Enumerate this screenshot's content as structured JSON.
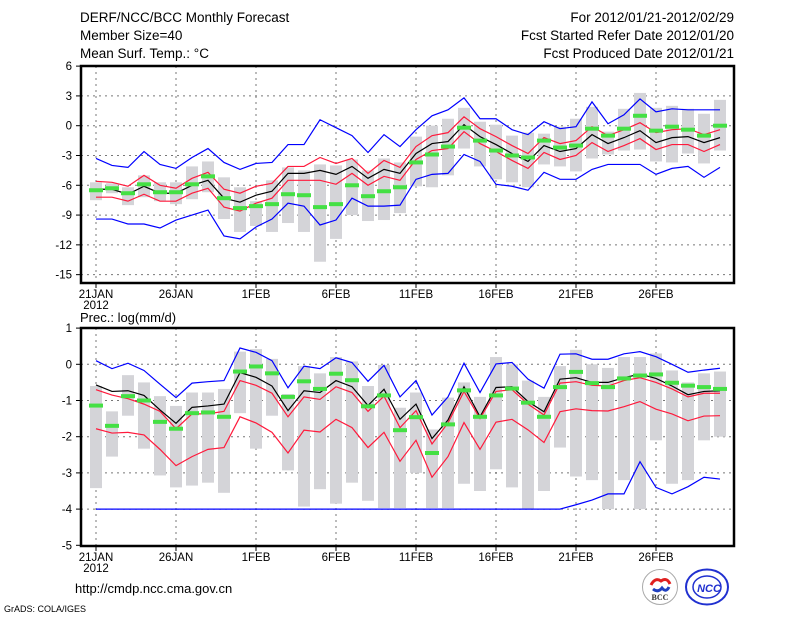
{
  "header": {
    "title": "DERF/NCC/BCC Monthly Forecast",
    "member_size": "Member Size=40",
    "variable_top": "Mean Surf. Temp.: °C",
    "period": "For 2012/01/21-2012/02/29",
    "started": "Fcst Started Refer Date 2012/01/20",
    "produced": "Fcst Produced Date 2012/01/21"
  },
  "footer": {
    "url": "http://cmdp.ncc.cma.gov.cn",
    "credit": "GrADS: COLA/IGES",
    "logos": [
      "BCC",
      "NCC"
    ]
  },
  "colors": {
    "mean": "#000000",
    "spread": "#ff1a3c",
    "extreme": "#0000ff",
    "marker": "#44e044",
    "box": "#d4d4d8"
  },
  "chart_data": [
    {
      "type": "line",
      "title": "Mean Surf. Temp.: °C",
      "x_ticks": [
        "21JAN",
        "26JAN",
        "1FEB",
        "6FEB",
        "11FEB",
        "16FEB",
        "21FEB",
        "26FEB"
      ],
      "x_tick_days": [
        0,
        5,
        10,
        15,
        20,
        25,
        30,
        35
      ],
      "x_sublabel": "2012",
      "days": 40,
      "ylim": [
        -15.8,
        6
      ],
      "y_ticks": [
        6,
        3,
        0,
        -3,
        -6,
        -9,
        -12,
        -15
      ],
      "grid": true,
      "series": [
        {
          "name": "max",
          "role": "extreme",
          "values": [
            -3.3,
            -4.0,
            -4.2,
            -2.6,
            -3.9,
            -4.3,
            -3.2,
            -2.3,
            -3.7,
            -4.4,
            -3.8,
            -3.7,
            -1.9,
            -1.9,
            0.6,
            -0.2,
            -1.0,
            -2.7,
            -0.9,
            -2.1,
            -0.4,
            1.0,
            1.6,
            2.8,
            0.7,
            0.7,
            -0.4,
            -0.9,
            0.4,
            -0.3,
            -0.1,
            2.4,
            0.2,
            1.1,
            2.7,
            1.4,
            1.7,
            1.6,
            1.6,
            1.6
          ]
        },
        {
          "name": "upper",
          "role": "spread",
          "values": [
            -5.6,
            -5.7,
            -6.1,
            -5.0,
            -6.0,
            -6.3,
            -5.3,
            -4.7,
            -6.4,
            -6.8,
            -6.1,
            -5.8,
            -4.1,
            -4.1,
            -3.2,
            -3.8,
            -3.3,
            -4.8,
            -3.5,
            -4.2,
            -2.1,
            -1.0,
            -0.7,
            0.9,
            -0.3,
            -1.1,
            -2.0,
            -2.8,
            -1.2,
            -1.8,
            -1.5,
            -0.1,
            -1.0,
            -0.4,
            0.3,
            -0.7,
            -0.4,
            -0.3,
            -0.9,
            -0.4
          ]
        },
        {
          "name": "mean",
          "role": "mean",
          "values": [
            -6.4,
            -6.4,
            -6.9,
            -6.1,
            -6.8,
            -6.8,
            -6.0,
            -5.5,
            -7.3,
            -7.7,
            -7.0,
            -6.6,
            -4.8,
            -4.8,
            -4.5,
            -4.9,
            -4.1,
            -5.3,
            -4.4,
            -4.8,
            -2.8,
            -1.8,
            -1.6,
            0.1,
            -1.1,
            -1.9,
            -2.8,
            -3.6,
            -2.0,
            -2.6,
            -2.3,
            -0.9,
            -1.8,
            -1.2,
            -0.5,
            -1.7,
            -1.2,
            -1.1,
            -1.7,
            -1.2
          ]
        },
        {
          "name": "lower",
          "role": "spread",
          "values": [
            -7.2,
            -7.2,
            -7.6,
            -6.9,
            -7.6,
            -7.6,
            -6.8,
            -6.3,
            -8.2,
            -8.6,
            -7.8,
            -7.3,
            -5.5,
            -5.5,
            -5.5,
            -5.9,
            -4.8,
            -6.0,
            -5.1,
            -5.5,
            -3.4,
            -2.5,
            -2.3,
            -0.6,
            -1.8,
            -2.6,
            -3.5,
            -4.3,
            -2.7,
            -3.4,
            -3.0,
            -1.7,
            -2.6,
            -2.0,
            -1.3,
            -2.4,
            -1.9,
            -1.9,
            -2.6,
            -1.9
          ]
        },
        {
          "name": "min",
          "role": "extreme",
          "values": [
            -9.4,
            -9.4,
            -9.9,
            -9.9,
            -10.3,
            -9.5,
            -9.0,
            -8.5,
            -11.1,
            -11.4,
            -10.2,
            -9.4,
            -7.8,
            -8.1,
            -10.0,
            -9.5,
            -7.3,
            -8.1,
            -8.1,
            -8.0,
            -5.4,
            -4.9,
            -4.8,
            -2.9,
            -3.6,
            -5.9,
            -6.1,
            -6.5,
            -4.7,
            -5.4,
            -5.4,
            -4.4,
            -3.9,
            -3.9,
            -3.9,
            -4.9,
            -4.3,
            -4.1,
            -5.2,
            -4.2
          ]
        }
      ],
      "markers": [
        -6.5,
        -6.3,
        -6.8,
        -5.9,
        -6.7,
        -6.7,
        -5.9,
        -5.1,
        -7.3,
        -8.3,
        -8.1,
        -7.9,
        -6.9,
        -7.0,
        -8.2,
        -7.9,
        -6.0,
        -7.1,
        -6.6,
        -6.2,
        -3.7,
        -2.9,
        -2.1,
        -0.2,
        -1.5,
        -2.5,
        -3.0,
        -3.2,
        -1.5,
        -2.2,
        -2.0,
        -0.3,
        -1.0,
        -0.3,
        1.0,
        -0.5,
        -0.1,
        -0.4,
        -1.0,
        0.0
      ],
      "box_ranges": [
        [
          -7.5,
          -5.7
        ],
        [
          -6.8,
          -5.8
        ],
        [
          -8.0,
          -6.2
        ],
        [
          -7.2,
          -5.0
        ],
        [
          -7.6,
          -5.7
        ],
        [
          -7.9,
          -5.7
        ],
        [
          -7.4,
          -4.1
        ],
        [
          -6.7,
          -3.6
        ],
        [
          -9.4,
          -5.2
        ],
        [
          -10.7,
          -6.2
        ],
        [
          -10.1,
          -7.6
        ],
        [
          -10.7,
          -5.5
        ],
        [
          -9.8,
          -4.2
        ],
        [
          -10.7,
          -4.5
        ],
        [
          -13.7,
          -3.9
        ],
        [
          -11.4,
          -4.0
        ],
        [
          -9.0,
          -3.4
        ],
        [
          -9.6,
          -4.5
        ],
        [
          -9.5,
          -3.3
        ],
        [
          -8.8,
          -3.7
        ],
        [
          -6.1,
          -1.1
        ],
        [
          -6.2,
          0.0
        ],
        [
          -5.0,
          0.7
        ],
        [
          -2.3,
          1.8
        ],
        [
          -4.1,
          0.4
        ],
        [
          -5.4,
          0.1
        ],
        [
          -5.7,
          -1.0
        ],
        [
          -6.2,
          -0.7
        ],
        [
          -3.9,
          -0.8
        ],
        [
          -4.1,
          -0.1
        ],
        [
          -4.6,
          0.7
        ],
        [
          -3.3,
          1.9
        ],
        [
          -2.9,
          -0.6
        ],
        [
          -2.5,
          1.7
        ],
        [
          -2.4,
          3.3
        ],
        [
          -3.6,
          1.8
        ],
        [
          -3.7,
          2.0
        ],
        [
          -2.8,
          1.7
        ],
        [
          -3.8,
          1.2
        ],
        [
          -2.5,
          2.6
        ]
      ]
    },
    {
      "type": "line",
      "title": "Prec.: log(mm/d)",
      "x_ticks": [
        "21JAN",
        "26JAN",
        "1FEB",
        "6FEB",
        "11FEB",
        "16FEB",
        "21FEB",
        "26FEB"
      ],
      "x_tick_days": [
        0,
        5,
        10,
        15,
        20,
        25,
        30,
        35
      ],
      "x_sublabel": "2012",
      "days": 40,
      "ylim": [
        -5,
        1
      ],
      "y_ticks": [
        1,
        0,
        -1,
        -2,
        -3,
        -4,
        -5
      ],
      "grid": true,
      "series": [
        {
          "name": "max",
          "role": "extreme",
          "values": [
            0.1,
            -0.12,
            0.03,
            -0.17,
            -0.55,
            -0.92,
            -0.52,
            -0.48,
            -0.45,
            0.45,
            0.33,
            0.1,
            -0.65,
            -0.05,
            -0.12,
            0.18,
            0.05,
            -0.47,
            -0.03,
            -0.9,
            -0.45,
            -1.4,
            -0.9,
            0.03,
            -0.78,
            0.01,
            0.05,
            -0.41,
            -0.66,
            0.28,
            0.29,
            0.14,
            0.14,
            0.29,
            0.35,
            0.21,
            0.0,
            -0.22,
            -0.16,
            -0.11
          ]
        },
        {
          "name": "mean",
          "role": "mean",
          "values": [
            -0.57,
            -0.75,
            -0.73,
            -0.86,
            -1.26,
            -1.63,
            -1.19,
            -1.15,
            -1.1,
            -0.23,
            -0.36,
            -0.6,
            -1.28,
            -0.73,
            -0.78,
            -0.45,
            -0.62,
            -1.14,
            -0.69,
            -1.52,
            -1.1,
            -2.05,
            -1.54,
            -0.62,
            -1.45,
            -0.64,
            -0.62,
            -1.03,
            -1.31,
            -0.41,
            -0.37,
            -0.5,
            -0.5,
            -0.37,
            -0.27,
            -0.39,
            -0.6,
            -0.84,
            -0.75,
            -0.73
          ]
        },
        {
          "name": "upper",
          "role": "spread",
          "values": [
            -0.7,
            -0.85,
            -0.95,
            -1.1,
            -1.3,
            -1.78,
            -1.37,
            -1.37,
            -1.3,
            -0.45,
            -0.58,
            -0.8,
            -1.45,
            -0.9,
            -0.97,
            -0.62,
            -0.78,
            -1.3,
            -0.88,
            -1.75,
            -1.28,
            -2.2,
            -1.62,
            -0.75,
            -1.5,
            -0.75,
            -0.7,
            -1.1,
            -1.4,
            -0.52,
            -0.48,
            -0.58,
            -0.6,
            -0.45,
            -0.37,
            -0.5,
            -0.68,
            -0.9,
            -0.8,
            -0.8
          ]
        },
        {
          "name": "lower",
          "role": "spread",
          "values": [
            -1.78,
            -1.9,
            -1.88,
            -1.95,
            -2.35,
            -2.8,
            -2.55,
            -2.35,
            -2.3,
            -1.45,
            -1.62,
            -1.88,
            -2.45,
            -1.82,
            -1.87,
            -1.52,
            -1.75,
            -2.3,
            -1.88,
            -2.68,
            -2.1,
            -3.12,
            -2.55,
            -1.61,
            -2.35,
            -1.6,
            -1.52,
            -1.81,
            -2.16,
            -1.31,
            -1.23,
            -1.28,
            -1.29,
            -1.17,
            -1.03,
            -1.24,
            -1.37,
            -1.56,
            -1.43,
            -1.42
          ]
        },
        {
          "name": "min",
          "role": "extreme",
          "values": [
            -4,
            -4,
            -4,
            -4,
            -4,
            -4,
            -4,
            -4,
            -4,
            -4,
            -4,
            -4,
            -4,
            -4,
            -4,
            -4,
            -4,
            -4,
            -4,
            -4,
            -4,
            -4,
            -4,
            -4,
            -4,
            -4,
            -4,
            -4,
            -4,
            -4,
            -3.88,
            -3.75,
            -3.58,
            -3.58,
            -2.69,
            -3.4,
            -3.58,
            -3.38,
            -3.12,
            -3.17
          ]
        }
      ],
      "markers": [
        -1.14,
        -1.7,
        -0.88,
        -1.0,
        -1.59,
        -1.78,
        -1.35,
        -1.33,
        -1.45,
        -0.2,
        -0.06,
        -0.25,
        -0.9,
        -0.47,
        -0.68,
        -0.26,
        -0.44,
        -1.16,
        -0.86,
        -1.82,
        -1.46,
        -2.45,
        -1.66,
        -0.72,
        -1.45,
        -0.86,
        -0.67,
        -1.06,
        -1.45,
        -0.63,
        -0.21,
        -0.52,
        -0.63,
        -0.39,
        -0.31,
        -0.28,
        -0.51,
        -0.59,
        -0.63,
        -0.68
      ],
      "box_ranges": [
        [
          -3.42,
          -0.6
        ],
        [
          -2.55,
          -1.3
        ],
        [
          -1.42,
          -0.3
        ],
        [
          -2.33,
          -0.5
        ],
        [
          -3.07,
          -0.88
        ],
        [
          -3.4,
          -1.15
        ],
        [
          -3.35,
          -0.78
        ],
        [
          -3.27,
          -0.78
        ],
        [
          -3.55,
          -0.68
        ],
        [
          -1.35,
          0.35
        ],
        [
          -2.33,
          0.42
        ],
        [
          -1.42,
          0.15
        ],
        [
          -2.93,
          -0.82
        ],
        [
          -3.93,
          -0.05
        ],
        [
          -3.45,
          -0.25
        ],
        [
          -3.85,
          0.2
        ],
        [
          -3.27,
          0.08
        ],
        [
          -3.77,
          -0.6
        ],
        [
          -3.97,
          -0.02
        ],
        [
          -3.97,
          -1.2
        ],
        [
          -3.0,
          -0.78
        ],
        [
          -3.97,
          -1.8
        ],
        [
          -3.97,
          -0.92
        ],
        [
          -3.3,
          -0.5
        ],
        [
          -3.5,
          -0.9
        ],
        [
          -2.9,
          0.2
        ],
        [
          -3.4,
          0.0
        ],
        [
          -4.0,
          -0.45
        ],
        [
          -3.5,
          -0.9
        ],
        [
          -2.3,
          -0.05
        ],
        [
          -3.1,
          0.4
        ],
        [
          -3.2,
          0.0
        ],
        [
          -4.0,
          -0.1
        ],
        [
          -3.2,
          0.2
        ],
        [
          -4.0,
          0.2
        ],
        [
          -2.1,
          0.3
        ],
        [
          -3.3,
          -0.17
        ],
        [
          -3.2,
          -0.5
        ],
        [
          -2.1,
          -0.25
        ],
        [
          -2.0,
          -0.2
        ]
      ]
    }
  ]
}
